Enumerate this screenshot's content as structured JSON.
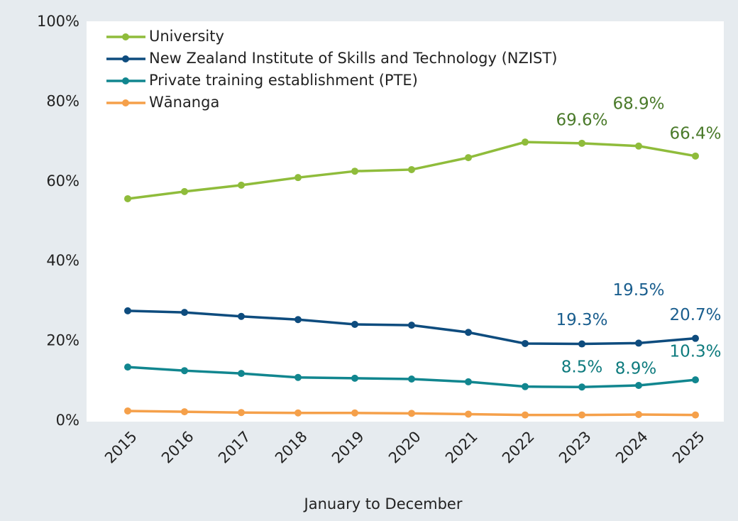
{
  "chart_data": {
    "type": "line",
    "x_label": "January to December",
    "categories": [
      "2015",
      "2016",
      "2017",
      "2018",
      "2019",
      "2020",
      "2021",
      "2022",
      "2023",
      "2024",
      "2025"
    ],
    "ylim": [
      0,
      100
    ],
    "yticks": [
      {
        "value": 0,
        "label": "0%"
      },
      {
        "value": 20,
        "label": "20%"
      },
      {
        "value": 40,
        "label": "40%"
      },
      {
        "value": 60,
        "label": "60%"
      },
      {
        "value": 80,
        "label": "80%"
      },
      {
        "value": 100,
        "label": "100%"
      }
    ],
    "legend": "top-left",
    "grid": false,
    "series": [
      {
        "name": "University",
        "color": "#8fbc3b",
        "label_color": "#4a7a2a",
        "values": [
          55.7,
          57.5,
          59.1,
          61.0,
          62.6,
          63.0,
          66.0,
          69.9,
          69.6,
          68.9,
          66.4
        ],
        "value_labels": [
          null,
          null,
          null,
          null,
          null,
          null,
          null,
          null,
          "69.6%",
          "68.9%",
          "66.4%"
        ]
      },
      {
        "name": "New Zealand Institute of Skills and Technology (NZIST)",
        "color": "#0e4c7e",
        "label_color": "#1a5e8e",
        "values": [
          27.6,
          27.2,
          26.2,
          25.4,
          24.2,
          24.0,
          22.2,
          19.4,
          19.3,
          19.5,
          20.7
        ],
        "value_labels": [
          null,
          null,
          null,
          null,
          null,
          null,
          null,
          null,
          "19.3%",
          "19.5%",
          "20.7%"
        ]
      },
      {
        "name": "Private training establishment (PTE)",
        "color": "#11868f",
        "label_color": "#0e7b7e",
        "values": [
          13.5,
          12.6,
          11.9,
          10.9,
          10.7,
          10.5,
          9.8,
          8.6,
          8.5,
          8.9,
          10.3
        ],
        "value_labels": [
          null,
          null,
          null,
          null,
          null,
          null,
          null,
          null,
          "8.5%",
          "8.9%",
          "10.3%"
        ]
      },
      {
        "name": "Wānanga",
        "color": "#f5a04a",
        "label_color": "#f5a04a",
        "values": [
          2.5,
          2.3,
          2.1,
          2.0,
          2.0,
          1.9,
          1.7,
          1.5,
          1.5,
          1.6,
          1.5
        ],
        "value_labels": null
      }
    ]
  }
}
